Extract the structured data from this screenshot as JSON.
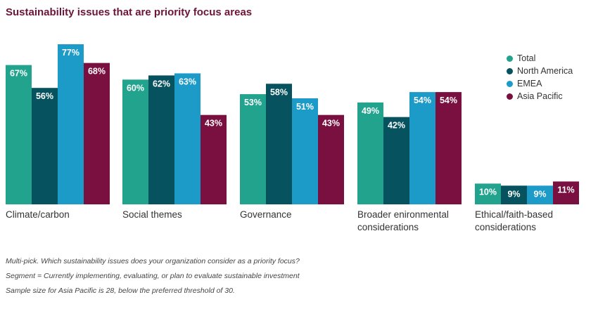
{
  "title": "Sustainability issues that are priority focus areas",
  "chart_data": {
    "type": "bar",
    "categories": [
      "Climate/carbon",
      "Social themes",
      "Governance",
      "Broader enironmental considerations",
      "Ethical/faith-based considerations"
    ],
    "category_lines": [
      [
        "Climate/carbon"
      ],
      [
        "Social themes"
      ],
      [
        "Governance"
      ],
      [
        "Broader enironmental",
        "considerations"
      ],
      [
        "Ethical/faith-based",
        "considerations"
      ]
    ],
    "series": [
      {
        "name": "Total",
        "color": "#22a38e",
        "values": [
          67,
          60,
          53,
          49,
          10
        ]
      },
      {
        "name": "North America",
        "color": "#06535f",
        "values": [
          56,
          62,
          58,
          42,
          9
        ]
      },
      {
        "name": "EMEA",
        "color": "#1c9bc9",
        "values": [
          77,
          63,
          51,
          54,
          9
        ]
      },
      {
        "name": "Asia Pacific",
        "color": "#7a1040",
        "values": [
          68,
          43,
          43,
          54,
          11
        ]
      }
    ],
    "value_suffix": "%",
    "ylim": [
      0,
      77
    ],
    "legend_position": "right",
    "grid": false
  },
  "footnotes": [
    "Multi-pick. Which sustainability issues does your organization consider as a priority focus?",
    "Segment = Currently implementing, evaluating, or plan to evaluate sustainable investment",
    "Sample size for Asia Pacific is 28, below the preferred threshold of 30."
  ]
}
